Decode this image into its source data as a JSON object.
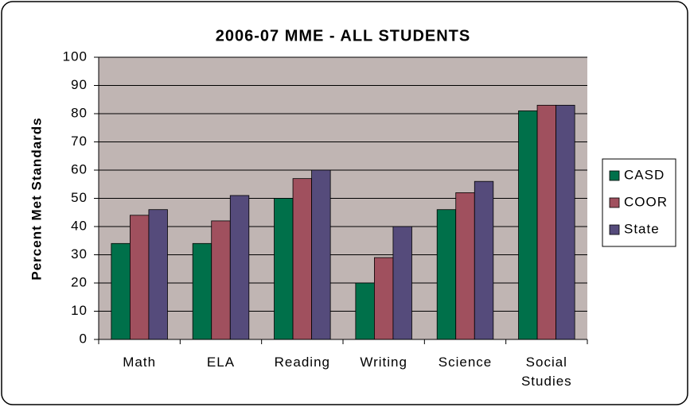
{
  "chart_data": {
    "type": "bar",
    "title": "2006-07 MME - ALL STUDENTS",
    "y_label": "Percent Met Standards",
    "categories": [
      "Math",
      "ELA",
      "Reading",
      "Writing",
      "Science",
      "Social Studies"
    ],
    "series": [
      {
        "name": "CASD",
        "color": "#00704a",
        "values": [
          34,
          34,
          50,
          20,
          46,
          81
        ]
      },
      {
        "name": "COOR",
        "color": "#a0505e",
        "values": [
          44,
          42,
          57,
          29,
          52,
          83
        ]
      },
      {
        "name": "State",
        "color": "#554b7b",
        "values": [
          46,
          51,
          60,
          40,
          56,
          83
        ]
      }
    ],
    "ylim": [
      0,
      100
    ],
    "yticks": [
      0,
      10,
      20,
      30,
      40,
      50,
      60,
      70,
      80,
      90,
      100
    ],
    "grid": true,
    "legend": "right"
  }
}
